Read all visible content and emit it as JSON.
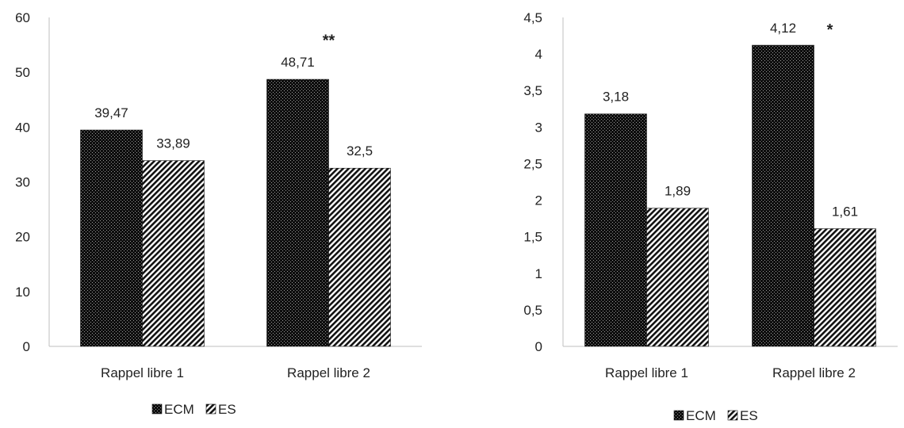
{
  "chart_data": [
    {
      "type": "bar",
      "categories": [
        "Rappel libre 1",
        "Rappel libre 2"
      ],
      "series": [
        {
          "name": "ECM",
          "values": [
            39.47,
            48.71
          ],
          "labels": [
            "39,47",
            "48,71"
          ],
          "pattern": "dots"
        },
        {
          "name": "ES",
          "values": [
            33.89,
            32.5
          ],
          "labels": [
            "33,89",
            "32,5"
          ],
          "pattern": "diagonal"
        }
      ],
      "ylim": [
        0,
        60
      ],
      "yticks": [
        0,
        10,
        20,
        30,
        40,
        50,
        60
      ],
      "ytick_labels": [
        "0",
        "10",
        "20",
        "30",
        "40",
        "50",
        "60"
      ],
      "annotations": [
        {
          "category_index": 1,
          "text": "**",
          "above_value": 56
        }
      ],
      "legend": "bottom",
      "grid": false
    },
    {
      "type": "bar",
      "categories": [
        "Rappel libre 1",
        "Rappel libre 2"
      ],
      "series": [
        {
          "name": "ECM",
          "values": [
            3.18,
            4.12
          ],
          "labels": [
            "3,18",
            "4,12"
          ],
          "pattern": "dots"
        },
        {
          "name": "ES",
          "values": [
            1.89,
            1.61
          ],
          "labels": [
            "1,89",
            "1,61"
          ],
          "pattern": "diagonal"
        }
      ],
      "ylim": [
        0,
        4.5
      ],
      "yticks": [
        0,
        0.5,
        1,
        1.5,
        2,
        2.5,
        3,
        3.5,
        4,
        4.5
      ],
      "ytick_labels": [
        "0",
        "0,5",
        "1",
        "1,5",
        "2",
        "2,5",
        "3",
        "3,5",
        "4",
        "4,5"
      ],
      "annotations": [
        {
          "category_index": 1,
          "text": "*",
          "above_value": 4.35
        }
      ],
      "legend": "bottom",
      "grid": false
    }
  ],
  "colors": {
    "bar_fill": "#111111",
    "bar_stroke": "#1a1a1a",
    "axis": "#bfbfbf",
    "text": "#222222"
  }
}
